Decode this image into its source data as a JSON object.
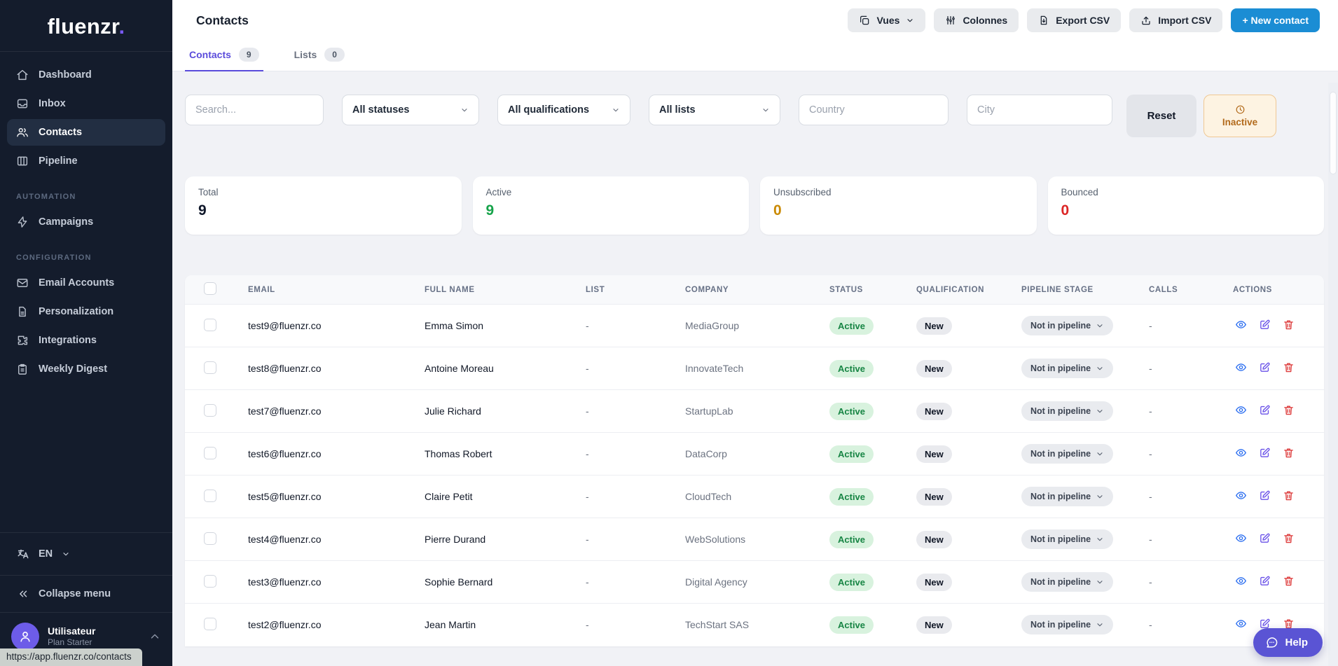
{
  "brand": {
    "name": "fluenzr",
    "dot": "."
  },
  "colors": {
    "brand_dot": "#7a5af8",
    "primary_blue": "#1b8dd4",
    "tab_active_purple": "#5a4bdb",
    "active_green": "#16a34a",
    "unsubscribed_amber": "#ca8a04",
    "bounced_red": "#dc2626",
    "help_purple": "#5a54d4",
    "sidebar_bg": "#141c2c"
  },
  "sidebar": {
    "main_items": [
      {
        "label": "Dashboard",
        "icon": "home",
        "active": false
      },
      {
        "label": "Inbox",
        "icon": "inbox",
        "active": false
      },
      {
        "label": "Contacts",
        "icon": "users",
        "active": true
      },
      {
        "label": "Pipeline",
        "icon": "columns",
        "active": false
      }
    ],
    "sections": [
      {
        "title": "AUTOMATION",
        "items": [
          {
            "label": "Campaigns",
            "icon": "zap"
          }
        ]
      },
      {
        "title": "CONFIGURATION",
        "items": [
          {
            "label": "Email Accounts",
            "icon": "mail"
          },
          {
            "label": "Personalization",
            "icon": "file-text"
          },
          {
            "label": "Integrations",
            "icon": "puzzle"
          },
          {
            "label": "Weekly Digest",
            "icon": "clipboard"
          }
        ]
      }
    ],
    "language": {
      "code": "EN",
      "icon": "translate"
    },
    "collapse": {
      "label": "Collapse menu",
      "icon": "chevrons-left"
    },
    "user": {
      "name": "Utilisateur",
      "plan": "Plan Starter"
    }
  },
  "header": {
    "title": "Contacts",
    "buttons": [
      {
        "label": "Vues",
        "icon": "copy",
        "chevron": true
      },
      {
        "label": "Colonnes",
        "icon": "sliders"
      },
      {
        "label": "Export CSV",
        "icon": "file-down"
      },
      {
        "label": "Import CSV",
        "icon": "upload"
      },
      {
        "label": "+ New contact",
        "primary": true
      }
    ]
  },
  "tabs": [
    {
      "label": "Contacts",
      "count": "9",
      "active": true
    },
    {
      "label": "Lists",
      "count": "0",
      "active": false
    }
  ],
  "filters": {
    "search_placeholder": "Search...",
    "status": "All statuses",
    "qualification": "All qualifications",
    "list": "All lists",
    "country_placeholder": "Country",
    "city_placeholder": "City",
    "reset_label": "Reset",
    "inactive_label": "Inactive"
  },
  "stats": [
    {
      "label": "Total",
      "value": "9",
      "color": "#0f172a"
    },
    {
      "label": "Active",
      "value": "9",
      "color": "#16a34a"
    },
    {
      "label": "Unsubscribed",
      "value": "0",
      "color": "#ca8a04"
    },
    {
      "label": "Bounced",
      "value": "0",
      "color": "#dc2626"
    }
  ],
  "table": {
    "columns": [
      "EMAIL",
      "FULL NAME",
      "LIST",
      "COMPANY",
      "STATUS",
      "QUALIFICATION",
      "PIPELINE STAGE",
      "CALLS",
      "ACTIONS"
    ],
    "rows": [
      {
        "email": "test9@fluenzr.co",
        "full_name": "Emma Simon",
        "list": "-",
        "company": "MediaGroup",
        "status": "Active",
        "qualification": "New",
        "pipeline_stage": "Not in pipeline",
        "calls": "-"
      },
      {
        "email": "test8@fluenzr.co",
        "full_name": "Antoine Moreau",
        "list": "-",
        "company": "InnovateTech",
        "status": "Active",
        "qualification": "New",
        "pipeline_stage": "Not in pipeline",
        "calls": "-"
      },
      {
        "email": "test7@fluenzr.co",
        "full_name": "Julie Richard",
        "list": "-",
        "company": "StartupLab",
        "status": "Active",
        "qualification": "New",
        "pipeline_stage": "Not in pipeline",
        "calls": "-"
      },
      {
        "email": "test6@fluenzr.co",
        "full_name": "Thomas Robert",
        "list": "-",
        "company": "DataCorp",
        "status": "Active",
        "qualification": "New",
        "pipeline_stage": "Not in pipeline",
        "calls": "-"
      },
      {
        "email": "test5@fluenzr.co",
        "full_name": "Claire Petit",
        "list": "-",
        "company": "CloudTech",
        "status": "Active",
        "qualification": "New",
        "pipeline_stage": "Not in pipeline",
        "calls": "-"
      },
      {
        "email": "test4@fluenzr.co",
        "full_name": "Pierre Durand",
        "list": "-",
        "company": "WebSolutions",
        "status": "Active",
        "qualification": "New",
        "pipeline_stage": "Not in pipeline",
        "calls": "-"
      },
      {
        "email": "test3@fluenzr.co",
        "full_name": "Sophie Bernard",
        "list": "-",
        "company": "Digital Agency",
        "status": "Active",
        "qualification": "New",
        "pipeline_stage": "Not in pipeline",
        "calls": "-"
      },
      {
        "email": "test2@fluenzr.co",
        "full_name": "Jean Martin",
        "list": "-",
        "company": "TechStart SAS",
        "status": "Active",
        "qualification": "New",
        "pipeline_stage": "Not in pipeline",
        "calls": "-"
      }
    ]
  },
  "help": {
    "label": "Help"
  },
  "statusbar": {
    "url": "https://app.fluenzr.co/contacts"
  }
}
